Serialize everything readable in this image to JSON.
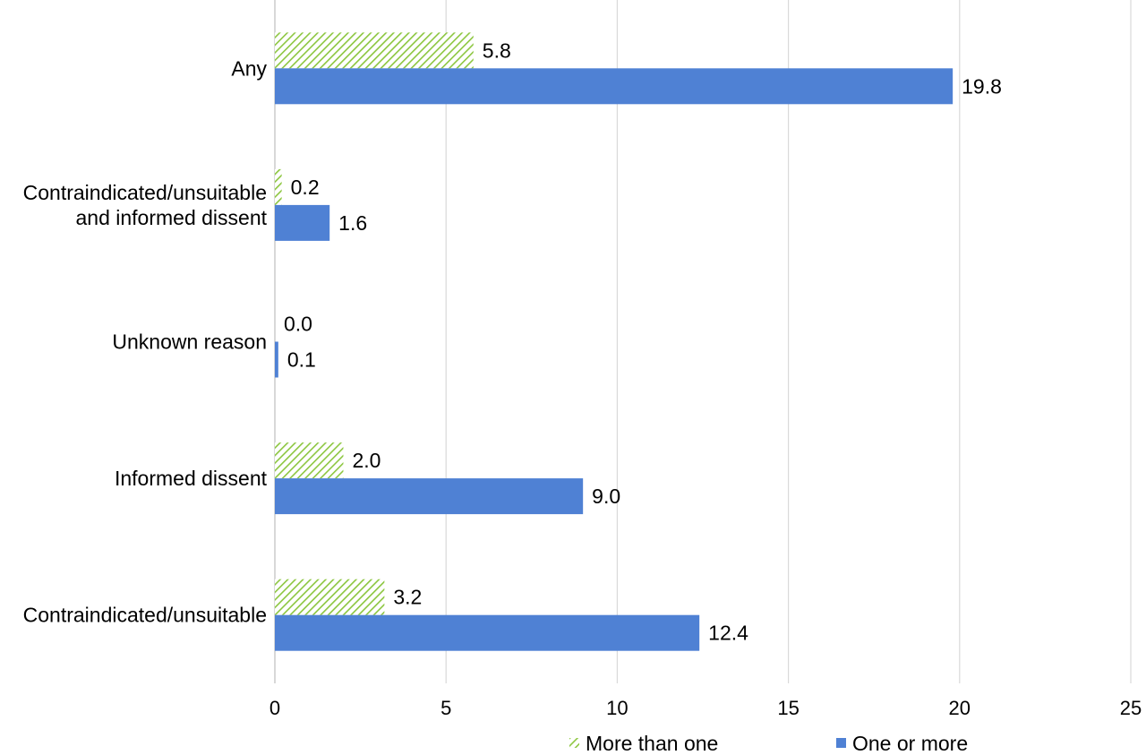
{
  "chart_data": {
    "type": "bar",
    "orientation": "horizontal",
    "title": "",
    "xlabel": "",
    "ylabel": "",
    "xlim": [
      0,
      25
    ],
    "x_ticks": [
      0,
      5,
      10,
      15,
      20,
      25
    ],
    "grid": "vertical",
    "categories": [
      "Any",
      "Contraindicated/unsuitable and informed dissent",
      "Unknown reason",
      "Informed dissent",
      "Contraindicated/unsuitable"
    ],
    "category_lines": [
      [
        "Any"
      ],
      [
        "Contraindicated/unsuitable",
        "and informed dissent"
      ],
      [
        "Unknown reason"
      ],
      [
        "Informed dissent"
      ],
      [
        "Contraindicated/unsuitable"
      ]
    ],
    "series": [
      {
        "name": "More than one",
        "values": [
          5.8,
          0.2,
          0.0,
          2.0,
          3.2
        ],
        "labels": [
          "5.8",
          "0.2",
          "0.0",
          "2.0",
          "3.2"
        ],
        "color": "#8cc63f",
        "pattern": "diagonal-hatch"
      },
      {
        "name": "One or more",
        "values": [
          19.8,
          1.6,
          0.1,
          9.0,
          12.4
        ],
        "labels": [
          "19.8",
          "1.6",
          "0.1",
          "9.0",
          "12.4"
        ],
        "color": "#4f81d4",
        "pattern": "solid"
      }
    ],
    "legend_position": "bottom"
  }
}
